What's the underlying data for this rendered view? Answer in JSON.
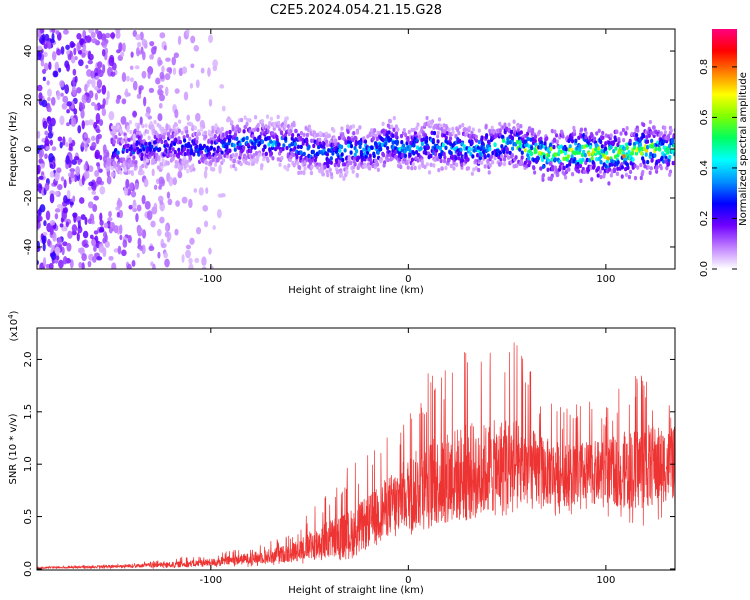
{
  "chart_data": [
    {
      "type": "heatmap",
      "title": "C2E5.2024.054.21.15.G28",
      "xlabel": "Height of straight line (km)",
      "ylabel": "Frequency (Hz)",
      "xlim": [
        -188,
        135
      ],
      "ylim": [
        -49,
        49
      ],
      "x_ticks": [
        -100,
        0,
        100
      ],
      "y_ticks": [
        -40,
        -20,
        0,
        20,
        40
      ],
      "colorbar": {
        "label": "Normalized spectral amplitude",
        "range": [
          0,
          0.95
        ],
        "ticks": [
          "0.0",
          "0.2",
          "0.4",
          "0.6",
          "0.8"
        ],
        "colormap": [
          "#ffffff",
          "#c080ff",
          "#7000ff",
          "#0000ff",
          "#0090ff",
          "#00ffff",
          "#00ff60",
          "#80ff00",
          "#ffff00",
          "#ff8000",
          "#ff0000",
          "#ff0080"
        ]
      },
      "ridge": {
        "description_hidden": true,
        "x_start": -150,
        "x_end": 135,
        "center_hz": [
          [
            -150,
            -1
          ],
          [
            -120,
            1
          ],
          [
            -100,
            0
          ],
          [
            -80,
            3
          ],
          [
            -60,
            2
          ],
          [
            -40,
            -3
          ],
          [
            -30,
            0
          ],
          [
            -20,
            -1
          ],
          [
            -10,
            2
          ],
          [
            0,
            0
          ],
          [
            10,
            2
          ],
          [
            20,
            1
          ],
          [
            30,
            0
          ],
          [
            40,
            0
          ],
          [
            50,
            3
          ],
          [
            60,
            0
          ],
          [
            70,
            -2
          ],
          [
            80,
            -2
          ],
          [
            90,
            -1
          ],
          [
            100,
            -3
          ],
          [
            110,
            -2
          ],
          [
            120,
            0
          ],
          [
            135,
            -1
          ]
        ],
        "peak_amplitude": [
          [
            -150,
            0.35
          ],
          [
            -100,
            0.4
          ],
          [
            -50,
            0.45
          ],
          [
            0,
            0.5
          ],
          [
            50,
            0.55
          ],
          [
            65,
            0.75
          ],
          [
            100,
            0.85
          ],
          [
            135,
            0.75
          ]
        ]
      }
    },
    {
      "type": "line",
      "title": "",
      "xlabel": "Height of straight line (km)",
      "ylabel": "SNR (10 * v/v)",
      "y_multiplier": "(x10",
      "y_multiplier_exp": "4",
      "y_multiplier_close": ")",
      "xlim": [
        -188,
        135
      ],
      "ylim": [
        -0.01,
        2.3
      ],
      "x_ticks": [
        -100,
        0,
        100
      ],
      "y_ticks": [
        "0.0",
        "0.5",
        "1.0",
        "1.5",
        "2.0"
      ],
      "series": [
        {
          "color": "#ee3333",
          "envelope_x": [
            -188,
            -160,
            -140,
            -120,
            -100,
            -80,
            -60,
            -50,
            -40,
            -30,
            -20,
            -10,
            0,
            10,
            20,
            30,
            40,
            50,
            60,
            70,
            80,
            90,
            100,
            110,
            120,
            135
          ],
          "envelope_low": [
            0.0,
            0.0,
            0.0,
            0.0,
            0.01,
            0.02,
            0.03,
            0.05,
            0.08,
            0.12,
            0.18,
            0.25,
            0.3,
            0.35,
            0.4,
            0.45,
            0.5,
            0.5,
            0.5,
            0.5,
            0.5,
            0.5,
            0.5,
            0.45,
            0.4,
            0.3
          ],
          "envelope_mid": [
            0.01,
            0.02,
            0.03,
            0.04,
            0.06,
            0.1,
            0.15,
            0.22,
            0.28,
            0.32,
            0.45,
            0.6,
            0.72,
            0.8,
            0.88,
            0.92,
            0.95,
            0.98,
            0.96,
            0.92,
            0.9,
            0.92,
            0.92,
            0.95,
            0.98,
            1.0
          ],
          "envelope_high": [
            0.02,
            0.04,
            0.06,
            0.1,
            0.15,
            0.22,
            0.35,
            0.55,
            0.8,
            1.0,
            1.1,
            1.3,
            1.6,
            1.9,
            2.0,
            2.2,
            2.1,
            2.3,
            2.0,
            1.7,
            1.6,
            1.6,
            1.6,
            1.8,
            1.9,
            1.5
          ]
        }
      ]
    }
  ]
}
